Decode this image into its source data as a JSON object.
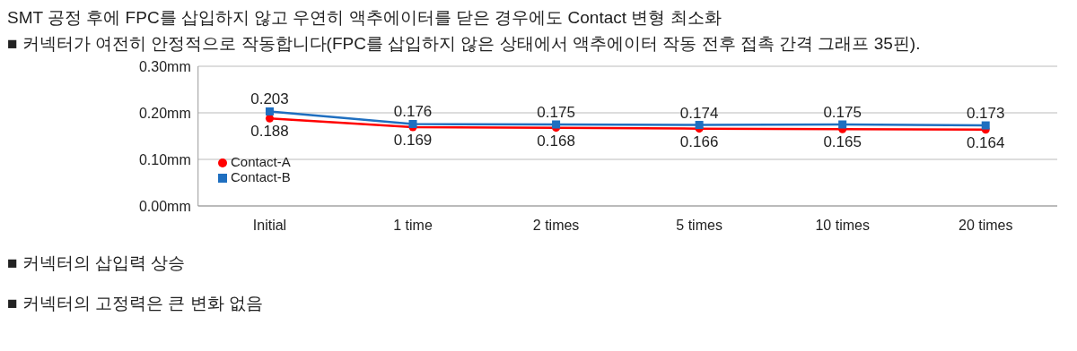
{
  "chart_data": {
    "type": "line",
    "title": "SMT 공정 후에 FPC를 삽입하지 않고 우연히 액추에이터를 닫은 경우에도 Contact 변형 최소화",
    "subtitle": "■  커넥터가 여전히 안정적으로 작동합니다(FPC를 삽입하지 않은 상태에서 액추에이터 작동 전후 접촉 간격 그래프 35핀).",
    "annotations": [
      "■  커넥터의 삽입력 상승",
      "■  커넥터의 고정력은 큰 변화 없음"
    ],
    "categories": [
      "Initial",
      "1 time",
      "2 times",
      "5 times",
      "10 times",
      "20 times"
    ],
    "series": [
      {
        "name": "Contact-A",
        "color": "#ff0000",
        "marker": "circle",
        "values": [
          0.188,
          0.169,
          0.168,
          0.166,
          0.165,
          0.164
        ]
      },
      {
        "name": "Contact-B",
        "color": "#1f6fc0",
        "marker": "square",
        "values": [
          0.203,
          0.176,
          0.175,
          0.174,
          0.175,
          0.173
        ]
      }
    ],
    "ylim": [
      0,
      0.3
    ],
    "yticks": [
      {
        "value": 0,
        "label": "0.00mm"
      },
      {
        "value": 0.1,
        "label": "0.10mm"
      },
      {
        "value": 0.2,
        "label": "0.20mm"
      },
      {
        "value": 0.3,
        "label": "0.30mm"
      }
    ],
    "grid": "y",
    "legend": "bottom left",
    "data_labels": true
  }
}
